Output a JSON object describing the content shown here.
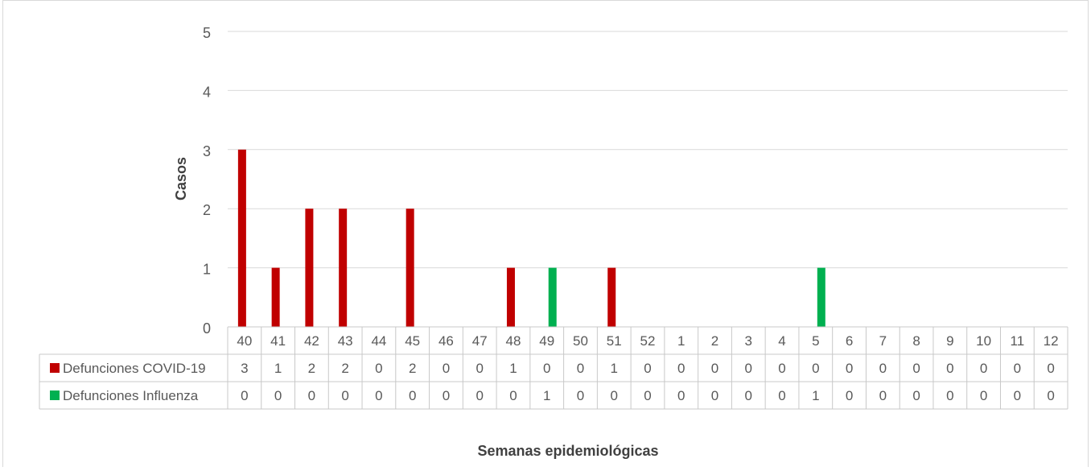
{
  "chart_data": {
    "type": "bar",
    "title": "",
    "xlabel": "Semanas epidemiológicas",
    "ylabel": "Casos",
    "ylim": [
      0,
      5
    ],
    "yticks": [
      "0",
      "1",
      "2",
      "3",
      "4",
      "5"
    ],
    "grid": true,
    "legend": "data-table",
    "categories": [
      "40",
      "41",
      "42",
      "43",
      "44",
      "45",
      "46",
      "47",
      "48",
      "49",
      "50",
      "51",
      "52",
      "1",
      "2",
      "3",
      "4",
      "5",
      "6",
      "7",
      "8",
      "9",
      "10",
      "11",
      "12"
    ],
    "series": [
      {
        "name": "Defunciones COVID-19",
        "color": "#C00000",
        "values": [
          3,
          1,
          2,
          2,
          0,
          2,
          0,
          0,
          1,
          0,
          0,
          1,
          0,
          0,
          0,
          0,
          0,
          0,
          0,
          0,
          0,
          0,
          0,
          0,
          0
        ]
      },
      {
        "name": "Defunciones Influenza",
        "color": "#00B050",
        "values": [
          0,
          0,
          0,
          0,
          0,
          0,
          0,
          0,
          0,
          1,
          0,
          0,
          0,
          0,
          0,
          0,
          0,
          1,
          0,
          0,
          0,
          0,
          0,
          0,
          0
        ]
      }
    ]
  }
}
